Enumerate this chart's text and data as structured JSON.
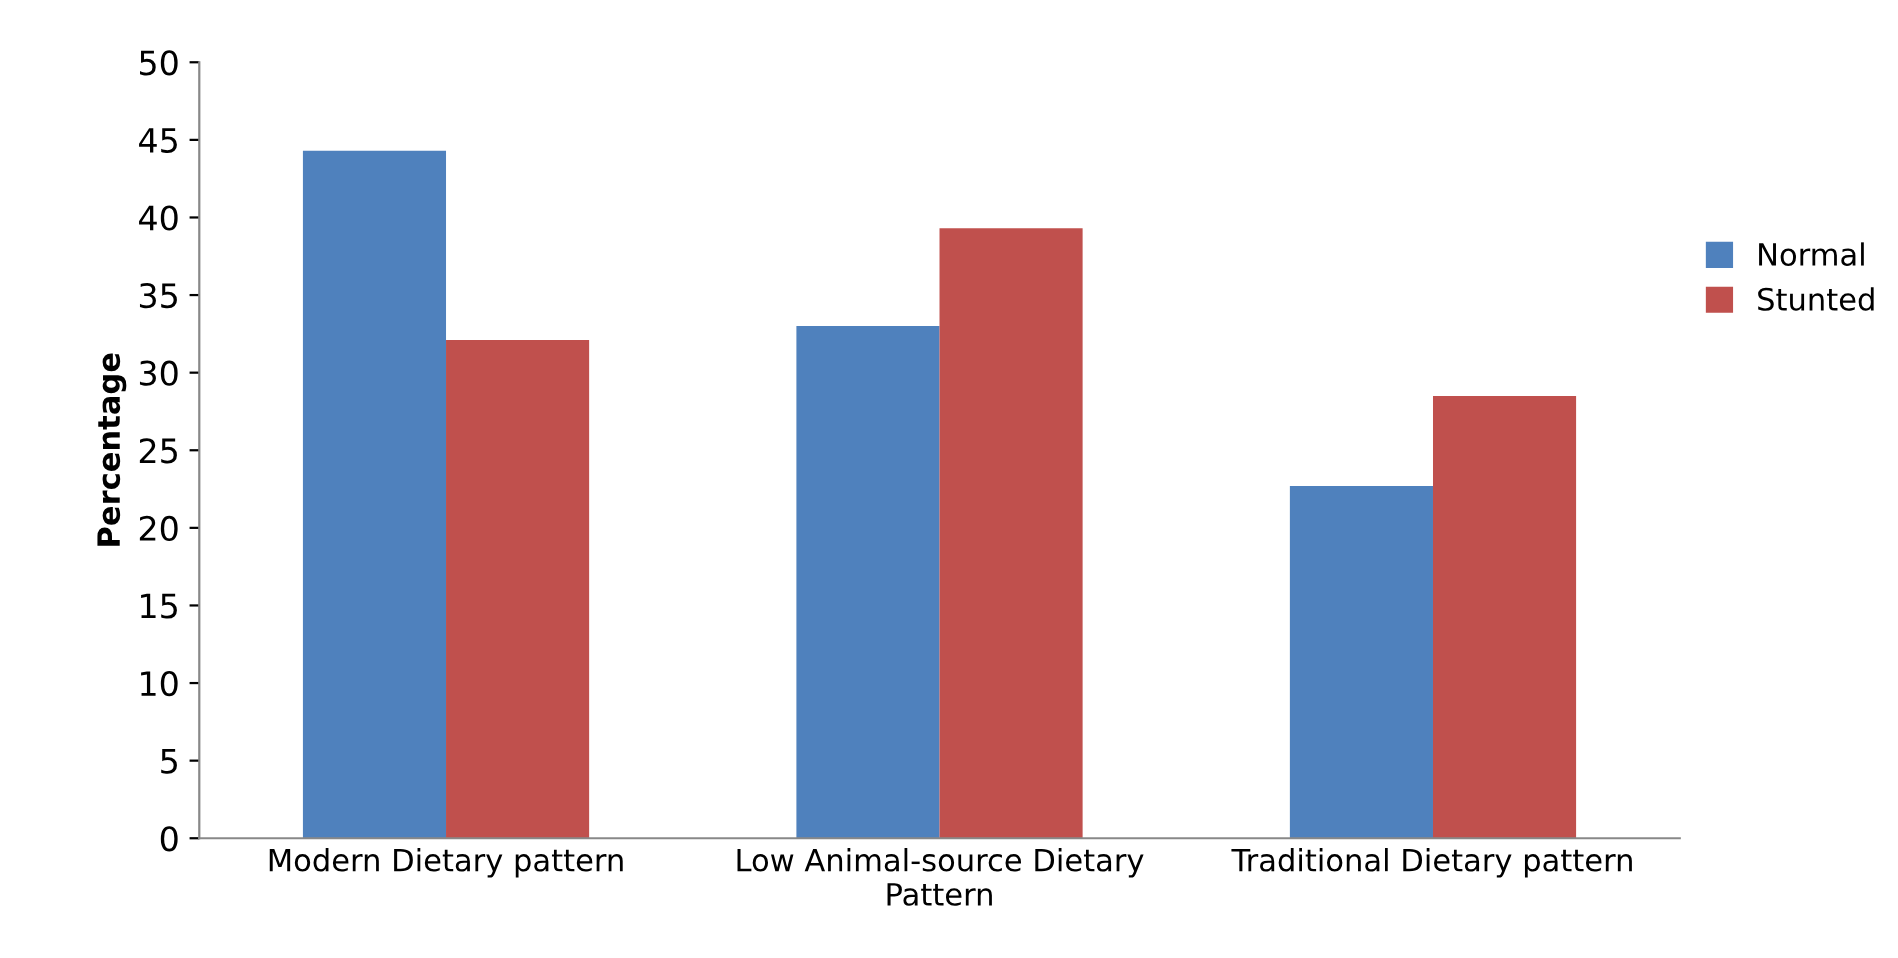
{
  "chart_data": {
    "type": "bar",
    "ylabel": "Percentage",
    "categories": [
      "Modern Dietary pattern",
      "Low Animal-source Dietary\nPattern",
      "Traditional Dietary pattern"
    ],
    "series": [
      {
        "name": "Normal",
        "color": "#4f81bd",
        "values": [
          44.3,
          33.0,
          22.7
        ]
      },
      {
        "name": "Stunted",
        "color": "#c0504d",
        "values": [
          32.1,
          39.3,
          28.5
        ]
      }
    ],
    "ylim": [
      0,
      50
    ],
    "yticks": [
      0,
      5,
      10,
      15,
      20,
      25,
      30,
      35,
      40,
      45,
      50
    ],
    "grid": false,
    "legend": "right"
  }
}
